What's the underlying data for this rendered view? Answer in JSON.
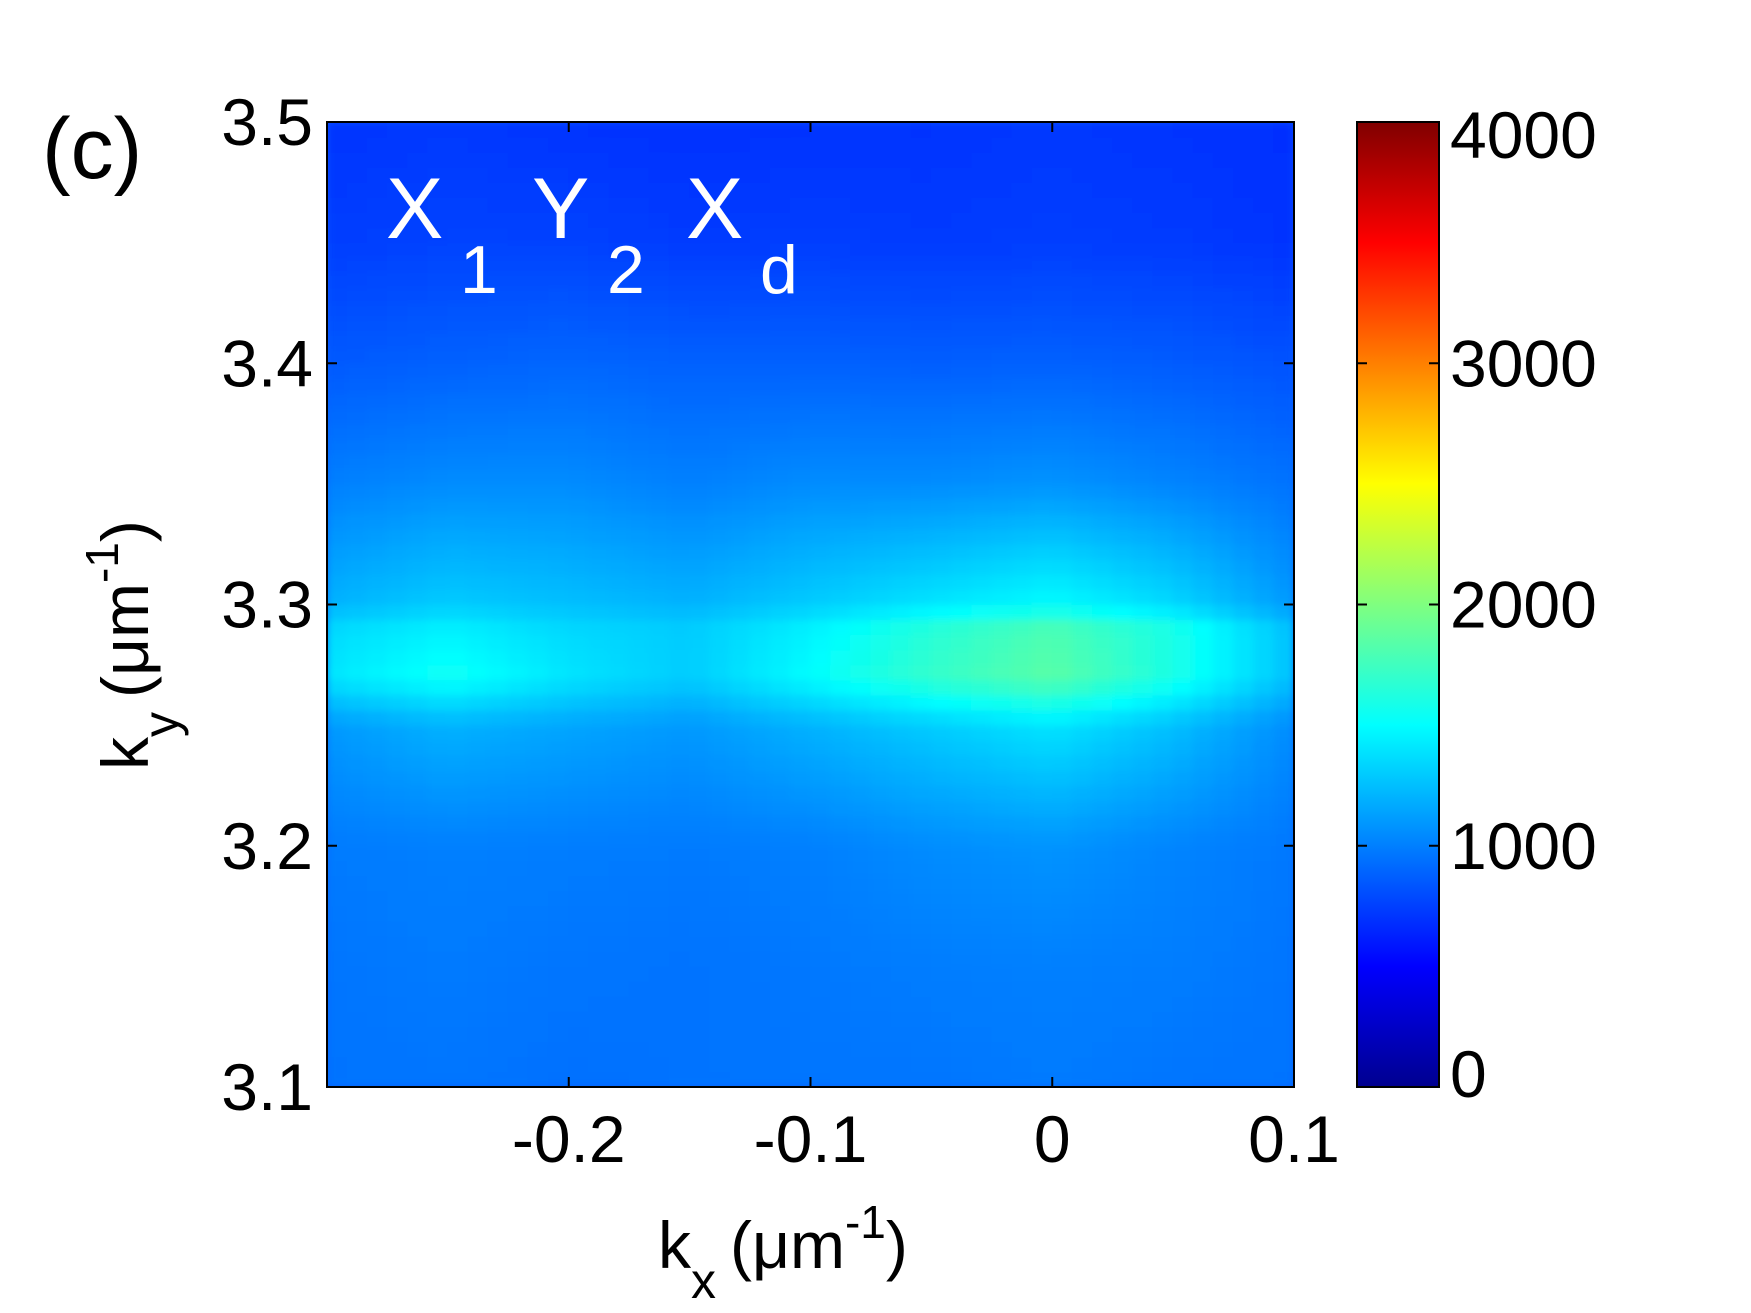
{
  "panel_label": "(c)",
  "colors": {
    "colormap": "jet"
  },
  "chart_data": {
    "type": "heatmap",
    "title": "",
    "annotation": {
      "X": "X",
      "sub1": "1",
      "Y": "Y",
      "sub2": "2",
      "X2": "X",
      "subd": "d"
    },
    "xlabel": {
      "base": "k",
      "sub": "x",
      "unit": "(μm",
      "sup": "-1",
      "close": ")"
    },
    "ylabel": {
      "base": "k",
      "sub": "y",
      "unit": "(μm",
      "sup": "-1",
      "close": ")"
    },
    "xlim": [
      -0.3,
      0.1
    ],
    "ylim": [
      3.1,
      3.5
    ],
    "x_ticks": [
      {
        "value": -0.2,
        "label": "-0.2"
      },
      {
        "value": -0.1,
        "label": "-0.1"
      },
      {
        "value": 0,
        "label": "0"
      },
      {
        "value": 0.1,
        "label": "0.1"
      }
    ],
    "y_ticks": [
      {
        "value": 3.1,
        "label": "3.1"
      },
      {
        "value": 3.2,
        "label": "3.2"
      },
      {
        "value": 3.3,
        "label": "3.3"
      },
      {
        "value": 3.4,
        "label": "3.4"
      },
      {
        "value": 3.5,
        "label": "3.5"
      }
    ],
    "colorbar": {
      "min": 0,
      "max": 4000,
      "ticks": [
        {
          "value": 0,
          "label": "0"
        },
        {
          "value": 1000,
          "label": "1000"
        },
        {
          "value": 2000,
          "label": "2000"
        },
        {
          "value": 3000,
          "label": "3000"
        },
        {
          "value": 4000,
          "label": "4000"
        }
      ]
    },
    "x": [
      -0.3,
      -0.25,
      -0.2,
      -0.15,
      -0.1,
      -0.05,
      0.0,
      0.05,
      0.1
    ],
    "y": [
      3.1,
      3.15,
      3.2,
      3.25,
      3.27,
      3.29,
      3.3,
      3.35,
      3.4,
      3.45,
      3.5
    ],
    "z": [
      [
        950,
        960,
        940,
        950,
        960,
        960,
        980,
        960,
        950
      ],
      [
        960,
        980,
        960,
        950,
        970,
        990,
        1000,
        990,
        960
      ],
      [
        980,
        1000,
        990,
        980,
        1000,
        1050,
        1080,
        1020,
        970
      ],
      [
        1100,
        1200,
        1150,
        1100,
        1200,
        1300,
        1400,
        1250,
        1050
      ],
      [
        1400,
        1550,
        1400,
        1300,
        1500,
        1700,
        1850,
        1600,
        1250
      ],
      [
        1350,
        1450,
        1350,
        1300,
        1450,
        1650,
        1800,
        1600,
        1250
      ],
      [
        1200,
        1300,
        1250,
        1200,
        1300,
        1400,
        1500,
        1350,
        1100
      ],
      [
        1000,
        1050,
        1050,
        1000,
        1050,
        1050,
        1080,
        1020,
        950
      ],
      [
        850,
        880,
        900,
        880,
        880,
        870,
        880,
        860,
        820
      ],
      [
        740,
        760,
        760,
        730,
        740,
        730,
        740,
        730,
        700
      ],
      [
        700,
        720,
        700,
        690,
        700,
        700,
        720,
        700,
        680
      ]
    ]
  }
}
